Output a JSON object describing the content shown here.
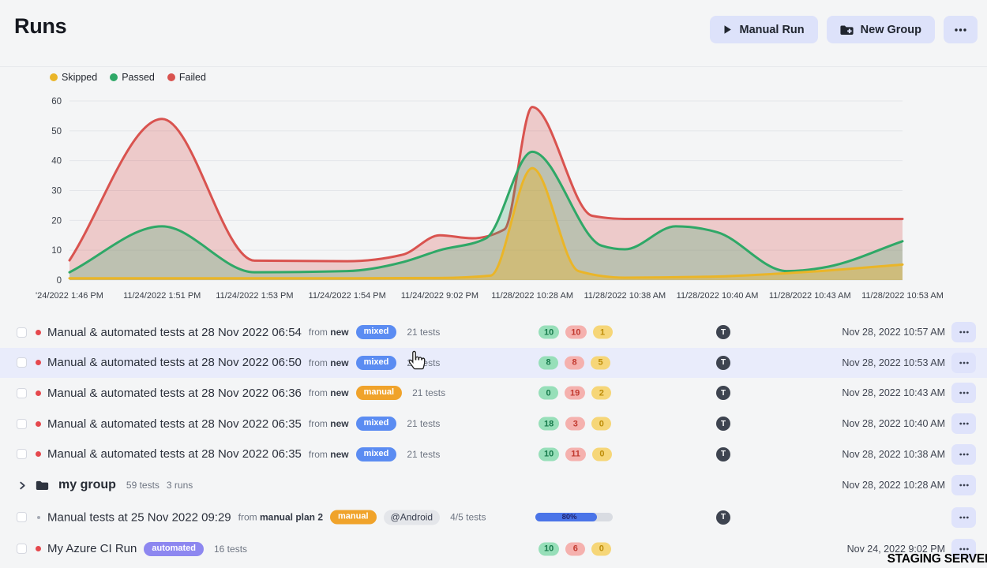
{
  "page": {
    "title": "Runs",
    "watermark": "STAGING SERVER"
  },
  "header": {
    "buttons": [
      {
        "label": "Manual Run",
        "icon": "play"
      },
      {
        "label": "New Group",
        "icon": "folder-plus"
      },
      {
        "label": "",
        "icon": "ellipsis"
      }
    ]
  },
  "chart_data": {
    "type": "area",
    "title": "",
    "xlabel": "",
    "ylabel": "",
    "grid": true,
    "legend_position": "top-left",
    "ylim": [
      0,
      60
    ],
    "yticks": [
      0,
      10,
      20,
      30,
      40,
      50,
      60
    ],
    "legend": [
      {
        "label": "Skipped",
        "color": "#eab528"
      },
      {
        "label": "Passed",
        "color": "#2fa867"
      },
      {
        "label": "Failed",
        "color": "#d9534f"
      }
    ],
    "x_labels": [
      "'24/2022 1:46 PM",
      "11/24/2022 1:51 PM",
      "11/24/2022 1:53 PM",
      "11/24/2022 1:54 PM",
      "11/24/2022 9:02 PM",
      "11/28/2022 10:28 AM",
      "11/28/2022 10:38 AM",
      "11/28/2022 10:40 AM",
      "11/28/2022 10:43 AM",
      "11/28/2022 10:53 AM"
    ],
    "series": [
      {
        "name": "Failed",
        "color": "#d9534f",
        "fill_opacity": 0.26,
        "points": [
          [
            0,
            6.6
          ],
          [
            1,
            54
          ],
          [
            2,
            6.5
          ],
          [
            3,
            6.3
          ],
          [
            3.6,
            8.5
          ],
          [
            4,
            15
          ],
          [
            4.35,
            14
          ],
          [
            4.7,
            17
          ],
          [
            5,
            58
          ],
          [
            5.65,
            21.5
          ],
          [
            6,
            20.5
          ],
          [
            7,
            20.5
          ],
          [
            8,
            20.5
          ],
          [
            9,
            20.5
          ]
        ]
      },
      {
        "name": "Passed",
        "color": "#2fa867",
        "fill_opacity": 0.25,
        "points": [
          [
            0,
            2.6
          ],
          [
            1,
            18
          ],
          [
            2,
            2.6
          ],
          [
            3,
            3
          ],
          [
            3.6,
            6
          ],
          [
            4,
            10
          ],
          [
            4.5,
            14
          ],
          [
            5,
            43
          ],
          [
            5.75,
            11.5
          ],
          [
            6,
            10.3
          ],
          [
            6.55,
            18
          ],
          [
            7,
            16
          ],
          [
            7.75,
            3
          ],
          [
            8.2,
            4.5
          ],
          [
            9,
            13
          ]
        ]
      },
      {
        "name": "Skipped",
        "color": "#eab528",
        "fill_opacity": 0.38,
        "points": [
          [
            0,
            0.6
          ],
          [
            1,
            0.6
          ],
          [
            2,
            0.6
          ],
          [
            3,
            0.6
          ],
          [
            4,
            0.7
          ],
          [
            4.55,
            1.5
          ],
          [
            5,
            37.5
          ],
          [
            5.5,
            3
          ],
          [
            6,
            0.8
          ],
          [
            7,
            1.2
          ],
          [
            8,
            2.8
          ],
          [
            9,
            5.2
          ]
        ]
      }
    ]
  },
  "runs": {
    "rows": [
      {
        "type": "run",
        "dot": "red",
        "title": "Manual & automated tests at 28 Nov 2022 06:54",
        "from": "new",
        "badge": "mixed",
        "badge_color": "blue",
        "tests": "21 tests",
        "stats": [
          {
            "name": "passed",
            "color": "green",
            "value": 10
          },
          {
            "name": "failed",
            "color": "red",
            "value": 10
          },
          {
            "name": "skipped",
            "color": "yellow",
            "value": 1
          }
        ],
        "avatar": "T",
        "date": "Nov 28, 2022 10:57 AM"
      },
      {
        "type": "run",
        "highlighted": true,
        "dot": "red",
        "title": "Manual & automated tests at 28 Nov 2022 06:50",
        "from": "new",
        "badge": "mixed",
        "badge_color": "blue",
        "tests": "21 tests",
        "stats": [
          {
            "name": "passed",
            "color": "green",
            "value": 8
          },
          {
            "name": "failed",
            "color": "red",
            "value": 8
          },
          {
            "name": "skipped",
            "color": "yellow",
            "value": 5
          }
        ],
        "avatar": "T",
        "date": "Nov 28, 2022 10:53 AM"
      },
      {
        "type": "run",
        "dot": "red",
        "title": "Manual & automated tests at 28 Nov 2022 06:36",
        "from": "new",
        "badge": "manual",
        "badge_color": "orange",
        "tests": "21 tests",
        "stats": [
          {
            "name": "passed",
            "color": "green",
            "value": 0
          },
          {
            "name": "failed",
            "color": "red",
            "value": 19
          },
          {
            "name": "skipped",
            "color": "yellow",
            "value": 2
          }
        ],
        "avatar": "T",
        "date": "Nov 28, 2022 10:43 AM"
      },
      {
        "type": "run",
        "dot": "red",
        "title": "Manual & automated tests at 28 Nov 2022 06:35",
        "from": "new",
        "badge": "mixed",
        "badge_color": "blue",
        "tests": "21 tests",
        "stats": [
          {
            "name": "passed",
            "color": "green",
            "value": 18
          },
          {
            "name": "failed",
            "color": "red",
            "value": 3
          },
          {
            "name": "skipped",
            "color": "yellow",
            "value": 0
          }
        ],
        "avatar": "T",
        "date": "Nov 28, 2022 10:40 AM"
      },
      {
        "type": "run",
        "dot": "red",
        "title": "Manual & automated tests at 28 Nov 2022 06:35",
        "from": "new",
        "badge": "mixed",
        "badge_color": "blue",
        "tests": "21 tests",
        "stats": [
          {
            "name": "passed",
            "color": "green",
            "value": 10
          },
          {
            "name": "failed",
            "color": "red",
            "value": 11
          },
          {
            "name": "skipped",
            "color": "yellow",
            "value": 0
          }
        ],
        "avatar": "T",
        "date": "Nov 28, 2022 10:38 AM"
      },
      {
        "type": "group",
        "name": "my group",
        "tests": "59 tests",
        "runs": "3 runs",
        "date": "Nov 28, 2022 10:28 AM"
      },
      {
        "type": "run",
        "dot": "tiny",
        "title": "Manual tests at 25 Nov 2022 09:29",
        "from": "manual plan 2",
        "badge": "manual",
        "badge_color": "orange",
        "tag": "@Android",
        "tests": "4/5 tests",
        "progress": {
          "percent": 80,
          "label": "80%"
        },
        "avatar": "T",
        "date": ""
      },
      {
        "type": "run",
        "dot": "red",
        "title": "My Azure CI Run",
        "badge": "automated",
        "badge_color": "purple",
        "tests": "16 tests",
        "stats": [
          {
            "name": "passed",
            "color": "green",
            "value": 10
          },
          {
            "name": "failed",
            "color": "red",
            "value": 6
          },
          {
            "name": "skipped",
            "color": "yellow",
            "value": 0
          }
        ],
        "avatar": "",
        "date": "Nov 24, 2022 9:02 PM"
      }
    ]
  },
  "colors": {
    "page_bg": "#f4f5f6",
    "accent_button_bg": "#dde2fa",
    "row_highlight": "#e9ecfb",
    "badge_blue": "#5b8cf2",
    "badge_orange": "#f0a32b",
    "badge_purple": "#8d87f0",
    "stat_green_bg": "#97dfb9",
    "stat_green_text": "#177a4b",
    "stat_red_bg": "#f5b1ae",
    "stat_red_text": "#c23a30",
    "stat_yellow_bg": "#f6d678",
    "stat_yellow_text": "#bd8c08",
    "avatar_bg": "#3e4450",
    "progress_fill": "#4a74e8",
    "status_dot_red": "#e5484d"
  }
}
